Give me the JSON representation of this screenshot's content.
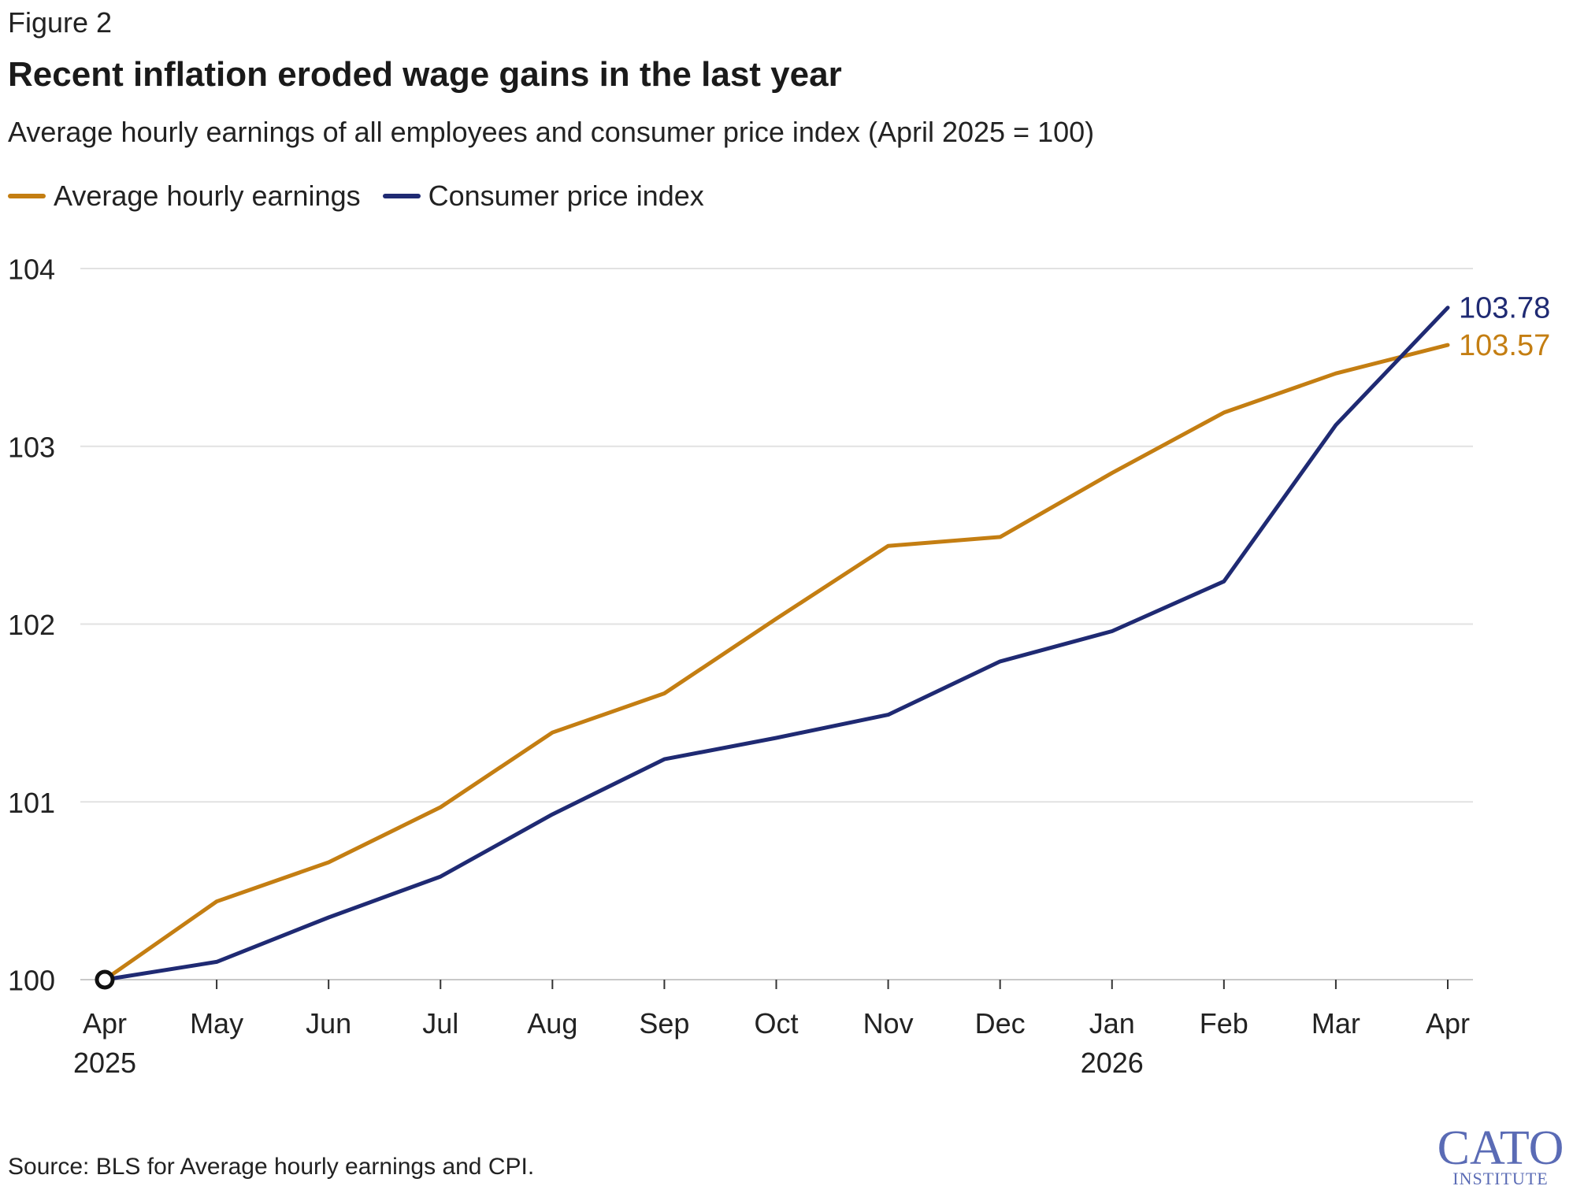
{
  "figure_label": "Figure 2",
  "title": "Recent inflation eroded wage gains in the last year",
  "subtitle": "Average hourly earnings of all employees and consumer price index (April 2025 = 100)",
  "source": "Source: BLS for Average hourly earnings and CPI.",
  "logo": {
    "text": "CATO",
    "subtext": "INSTITUTE",
    "color": "#5a6bb5"
  },
  "legend": [
    {
      "label": "Average hourly earnings",
      "color": "#c47e12"
    },
    {
      "label": "Consumer price index",
      "color": "#1f2a73"
    }
  ],
  "chart_data": {
    "type": "line",
    "x": [
      "Apr 2025",
      "May 2025",
      "Jun 2025",
      "Jul 2025",
      "Aug 2025",
      "Sep 2025",
      "Oct 2025",
      "Nov 2025",
      "Dec 2025",
      "Jan 2026",
      "Feb 2026",
      "Mar 2026",
      "Apr 2026"
    ],
    "x_tick_labels": [
      "Apr",
      "May",
      "Jun",
      "Jul",
      "Aug",
      "Sep",
      "Oct",
      "Nov",
      "Dec",
      "Jan",
      "Feb",
      "Mar",
      "Apr"
    ],
    "x_year_labels": [
      {
        "index": 0,
        "label": "2025"
      },
      {
        "index": 9,
        "label": "2026"
      }
    ],
    "series": [
      {
        "name": "Average hourly earnings",
        "color": "#c47e12",
        "values": [
          100,
          100.44,
          100.66,
          100.97,
          101.39,
          101.61,
          102.03,
          102.44,
          102.49,
          102.85,
          103.19,
          103.41,
          103.57
        ],
        "end_label": "103.57"
      },
      {
        "name": "Consumer price index",
        "color": "#1f2a73",
        "values": [
          100,
          100.1,
          100.35,
          100.58,
          100.93,
          101.24,
          101.36,
          101.49,
          101.79,
          101.96,
          102.24,
          103.12,
          103.78
        ],
        "end_label": "103.78"
      }
    ],
    "ylim": [
      100,
      104
    ],
    "y_ticks": [
      100,
      101,
      102,
      103,
      104
    ],
    "xlabel": "",
    "ylabel": "",
    "grid": true,
    "legend_position": "top-left",
    "start_marker": {
      "x_index": 0,
      "value": 100
    }
  }
}
